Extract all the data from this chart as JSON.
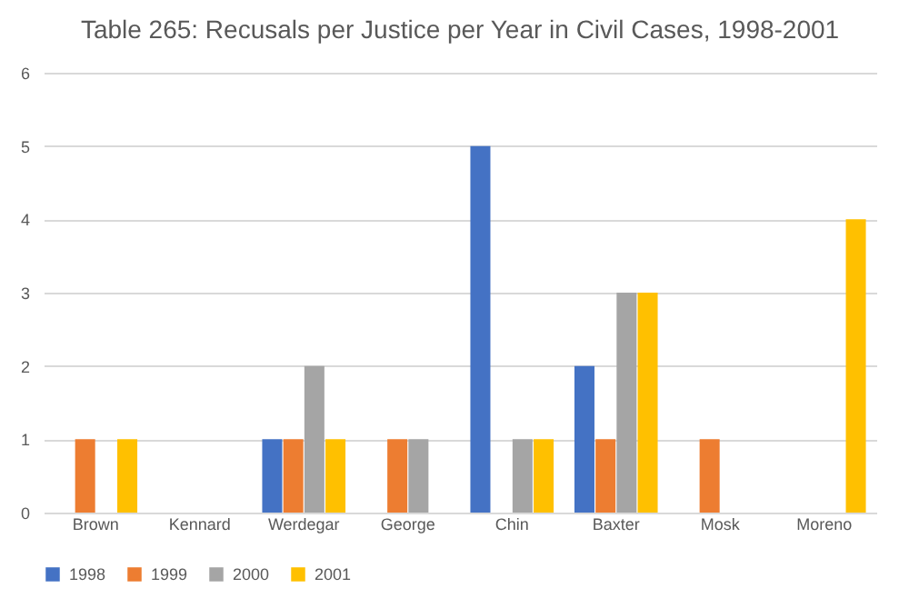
{
  "chart_data": {
    "type": "bar",
    "title": "Table 265: Recusals per Justice per Year in Civil Cases, 1998-2001",
    "categories": [
      "Brown",
      "Kennard",
      "Werdegar",
      "George",
      "Chin",
      "Baxter",
      "Mosk",
      "Moreno"
    ],
    "series": [
      {
        "name": "1998",
        "color": "#4472c4",
        "values": [
          0,
          0,
          1,
          0,
          5,
          2,
          0,
          0
        ]
      },
      {
        "name": "1999",
        "color": "#ed7d31",
        "values": [
          1,
          0,
          1,
          1,
          0,
          1,
          1,
          0
        ]
      },
      {
        "name": "2000",
        "color": "#a5a5a5",
        "values": [
          0,
          0,
          2,
          1,
          1,
          3,
          0,
          0
        ]
      },
      {
        "name": "2001",
        "color": "#ffc000",
        "values": [
          1,
          0,
          1,
          0,
          1,
          3,
          0,
          4
        ]
      }
    ],
    "ylim": [
      0,
      6
    ],
    "yticks": [
      0,
      1,
      2,
      3,
      4,
      5,
      6
    ],
    "grid": "y",
    "legend": "bottom"
  }
}
